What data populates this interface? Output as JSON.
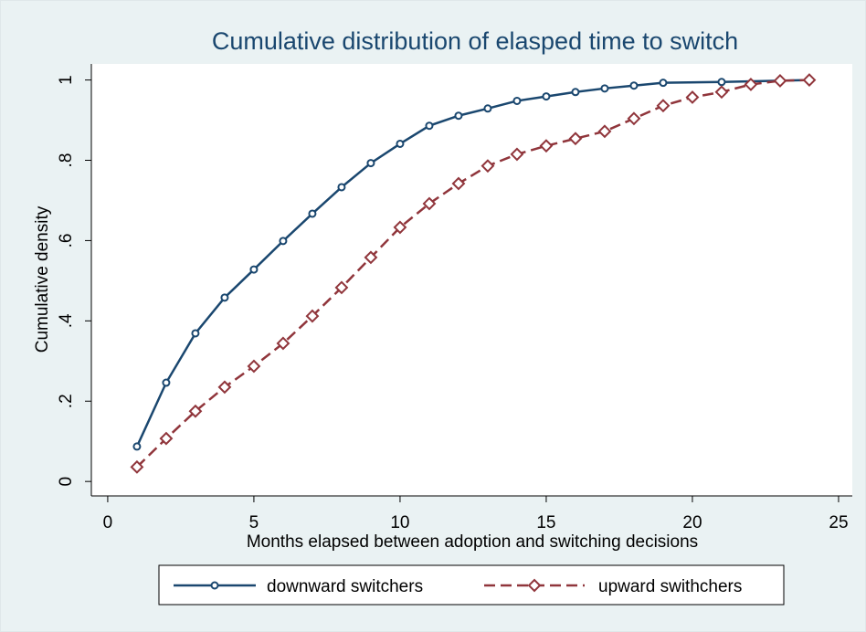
{
  "chart_data": {
    "type": "line",
    "title": "Cumulative distribution of elasped time to switch",
    "xlabel": "Months elapsed between adoption and switching decisions",
    "ylabel": "Cumulative density",
    "xlim": [
      -0.56,
      25.47
    ],
    "xticks": [
      0,
      5,
      10,
      15,
      20,
      25
    ],
    "ylim": [
      -0.036,
      1.04
    ],
    "yticks": [
      0,
      {
        "value": 0.2,
        "label": ".2"
      },
      {
        "value": 0.4,
        "label": ".4"
      },
      {
        "value": 0.6,
        "label": ".6"
      },
      {
        "value": 0.8,
        "label": ".8"
      },
      1
    ],
    "grid": false,
    "legend": "bottom",
    "series": [
      {
        "name": "downward switchers",
        "color": "#1a476f",
        "marker": "circle",
        "dash": "solid",
        "x": [
          1,
          2,
          3,
          4,
          5,
          6,
          7,
          8,
          9,
          10,
          11,
          12,
          13,
          14,
          15,
          16,
          17,
          18,
          19,
          21,
          24
        ],
        "values": [
          0.087,
          0.246,
          0.369,
          0.458,
          0.528,
          0.599,
          0.667,
          0.733,
          0.793,
          0.841,
          0.886,
          0.911,
          0.929,
          0.948,
          0.959,
          0.97,
          0.979,
          0.986,
          0.993,
          0.995,
          1
        ]
      },
      {
        "name": "upward swithchers",
        "color": "#90353b",
        "marker": "diamond",
        "dash": "dashed",
        "x": [
          1,
          2,
          3,
          4,
          5,
          6,
          7,
          8,
          9,
          10,
          11,
          12,
          13,
          14,
          15,
          16,
          17,
          18,
          19,
          20,
          21,
          22,
          23,
          24
        ],
        "values": [
          0.036,
          0.107,
          0.175,
          0.235,
          0.287,
          0.344,
          0.412,
          0.483,
          0.558,
          0.633,
          0.692,
          0.742,
          0.786,
          0.815,
          0.836,
          0.854,
          0.872,
          0.904,
          0.936,
          0.957,
          0.97,
          0.989,
          0.998,
          1
        ]
      }
    ]
  }
}
